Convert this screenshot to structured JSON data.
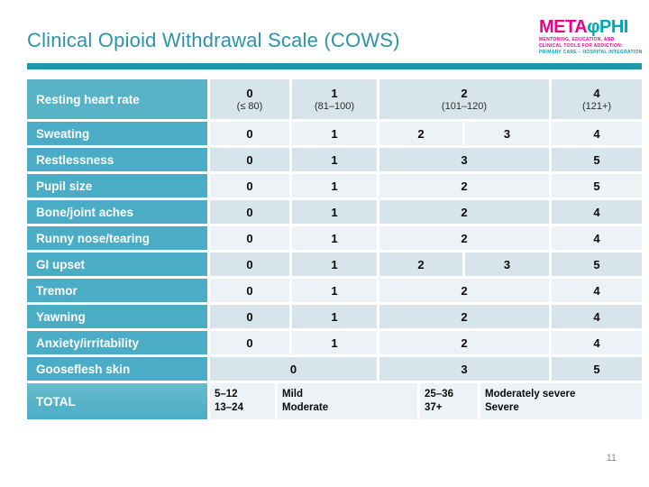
{
  "slide": {
    "title": "Clinical Opioid Withdrawal Scale (COWS)",
    "page_number": "11"
  },
  "logo": {
    "meta": "META",
    "phi_symbol": "φ",
    "phi": "PHI",
    "tagline_line1": "MENTORING, EDUCATION, AND",
    "tagline_line2": "CLINICAL TOOLS FOR ADDICTION:",
    "tagline_line3": "PRIMARY CARE – HOSPITAL INTEGRATION"
  },
  "colors": {
    "title_teal": "#2D93A8",
    "rule_teal": "#2197AA",
    "label_teal": "#4BACC6",
    "header_label_teal": "#58B3C7",
    "row_band_dark": "#D8E4EC",
    "row_band_light": "#ECF2F6",
    "logo_magenta": "#EC008C",
    "logo_teal": "#00A7B5",
    "page_number_gray": "#8a8a8a"
  },
  "table": {
    "rows": [
      {
        "label": "Resting heart rate",
        "type": "header",
        "band": "dark",
        "cells": [
          {
            "value": "0",
            "sub": "(≤ 80)",
            "span": 1
          },
          {
            "value": "1",
            "sub": "(81–100)",
            "span": 1
          },
          {
            "value": "2",
            "sub": "(101–120)",
            "span": 2
          },
          {
            "value": "4",
            "sub": "(121+)",
            "span": 1
          }
        ]
      },
      {
        "label": "Sweating",
        "type": "normal",
        "band": "light",
        "cells": [
          {
            "value": "0"
          },
          {
            "value": "1"
          },
          {
            "value": "2"
          },
          {
            "value": "3"
          },
          {
            "value": "4"
          }
        ]
      },
      {
        "label": "Restlessness",
        "type": "normal",
        "band": "dark",
        "cells": [
          {
            "value": "0"
          },
          {
            "value": "1"
          },
          {
            "value": "3",
            "span": 2
          },
          {
            "value": "5"
          }
        ]
      },
      {
        "label": "Pupil size",
        "type": "normal",
        "band": "light",
        "cells": [
          {
            "value": "0"
          },
          {
            "value": "1"
          },
          {
            "value": "2",
            "span": 2
          },
          {
            "value": "5"
          }
        ]
      },
      {
        "label": "Bone/joint aches",
        "type": "normal",
        "band": "dark",
        "cells": [
          {
            "value": "0"
          },
          {
            "value": "1"
          },
          {
            "value": "2",
            "span": 2
          },
          {
            "value": "4"
          }
        ]
      },
      {
        "label": "Runny nose/tearing",
        "type": "normal",
        "band": "light",
        "cells": [
          {
            "value": "0"
          },
          {
            "value": "1"
          },
          {
            "value": "2",
            "span": 2
          },
          {
            "value": "4"
          }
        ]
      },
      {
        "label": "GI upset",
        "type": "normal",
        "band": "dark",
        "cells": [
          {
            "value": "0"
          },
          {
            "value": "1"
          },
          {
            "value": "2"
          },
          {
            "value": "3"
          },
          {
            "value": "5"
          }
        ]
      },
      {
        "label": "Tremor",
        "type": "normal",
        "band": "light",
        "cells": [
          {
            "value": "0"
          },
          {
            "value": "1"
          },
          {
            "value": "2",
            "span": 2
          },
          {
            "value": "4"
          }
        ]
      },
      {
        "label": "Yawning",
        "type": "normal",
        "band": "dark",
        "cells": [
          {
            "value": "0"
          },
          {
            "value": "1"
          },
          {
            "value": "2",
            "span": 2
          },
          {
            "value": "4"
          }
        ]
      },
      {
        "label": "Anxiety/irritability",
        "type": "normal",
        "band": "light",
        "cells": [
          {
            "value": "0"
          },
          {
            "value": "1"
          },
          {
            "value": "2",
            "span": 2
          },
          {
            "value": "4"
          }
        ]
      },
      {
        "label": "Gooseflesh skin",
        "type": "normal",
        "band": "dark",
        "cells": [
          {
            "value": "0",
            "span": 2
          },
          {
            "value": "3",
            "span": 2
          },
          {
            "value": "5"
          }
        ]
      },
      {
        "label": "TOTAL",
        "type": "total",
        "band": "light",
        "cells": [
          {
            "lines": [
              "5–12",
              "13–24"
            ]
          },
          {
            "lines": [
              "Mild",
              "Moderate"
            ]
          },
          {
            "lines": [
              "25–36",
              "37+"
            ]
          },
          {
            "lines": [
              "Moderately severe",
              "Severe"
            ]
          }
        ]
      }
    ]
  }
}
